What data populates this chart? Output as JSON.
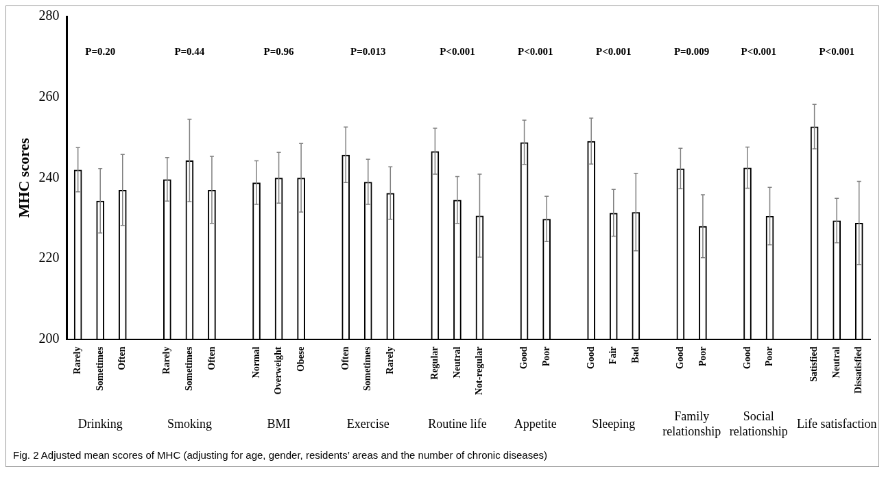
{
  "chart_data": {
    "type": "bar",
    "ylabel": "MHC scores",
    "ylim": [
      200,
      280
    ],
    "yticks": [
      200,
      220,
      240,
      260,
      280
    ],
    "color": "#000000",
    "categories": [
      "Rarely",
      "Sometimes",
      "Often",
      null,
      "Rarely",
      "Sometimes",
      "Often",
      null,
      "Normal",
      "Overweight",
      "Obese",
      null,
      "Often",
      "Sometimes",
      "Rarely",
      null,
      "Regular",
      "Neutral",
      "Not-regular",
      null,
      "Good",
      "Poor",
      null,
      "Good",
      "Fair",
      "Bad",
      null,
      "Good",
      "Poor",
      null,
      "Good",
      "Poor",
      null,
      "Satisfied",
      "Neutral",
      "Dissatisfied"
    ],
    "values": [
      242.0,
      234.3,
      237.0,
      null,
      239.6,
      244.3,
      237.0,
      null,
      238.8,
      240.0,
      240.0,
      null,
      245.7,
      239.0,
      236.2,
      null,
      246.6,
      234.5,
      230.6,
      null,
      248.8,
      229.8,
      null,
      249.1,
      231.3,
      231.5,
      null,
      242.3,
      228.0,
      null,
      242.5,
      230.5,
      null,
      252.7,
      229.4,
      228.8
    ],
    "errors": [
      5.5,
      8.0,
      8.8,
      null,
      5.4,
      10.2,
      8.3,
      null,
      5.4,
      6.3,
      8.5,
      null,
      6.9,
      5.6,
      6.5,
      null,
      5.7,
      5.8,
      10.3,
      null,
      5.5,
      5.6,
      null,
      5.7,
      5.8,
      9.6,
      null,
      5.0,
      7.8,
      null,
      5.1,
      7.1,
      null,
      5.5,
      5.5,
      10.3
    ],
    "annotations": [
      "P=0.20",
      "P=0.44",
      "P=0.96",
      "P=0.013",
      "P<0.001",
      "P<0.001",
      "P<0.001",
      "P=0.009",
      "P<0.001",
      "P<0.001",
      "Drinking",
      "Smoking",
      "BMI",
      "Exercise",
      "Routine life",
      "Appetite",
      "Sleeping",
      "Family relationship",
      "Social relationship",
      "Life satisfaction",
      "Fig. 2 Adjusted mean scores of MHC (adjusting for age, gender, residents’ areas and the number of chronic diseases)"
    ]
  }
}
